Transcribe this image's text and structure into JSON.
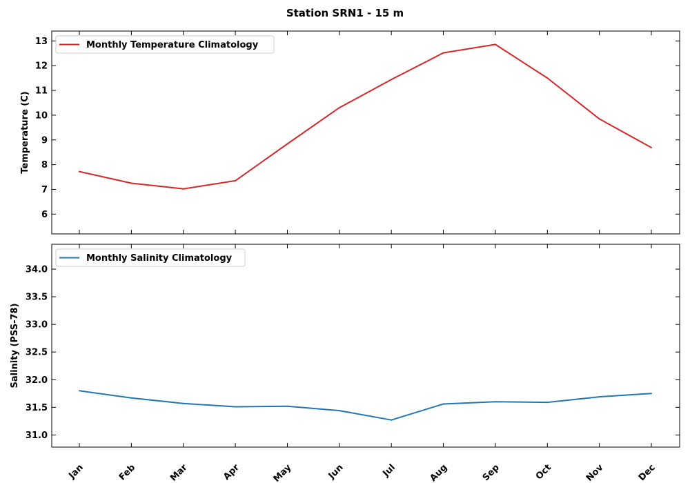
{
  "figure": {
    "title": "Station SRN1 - 15 m"
  },
  "chart_data": [
    {
      "type": "line",
      "title": "",
      "categories": [
        "Jan",
        "Feb",
        "Mar",
        "Apr",
        "May",
        "Jun",
        "Jul",
        "Aug",
        "Sep",
        "Oct",
        "Nov",
        "Dec"
      ],
      "series": [
        {
          "name": "Monthly Temperature Climatology",
          "color": "#d62728",
          "values": [
            7.72,
            7.25,
            7.02,
            7.35,
            8.84,
            10.3,
            11.44,
            12.52,
            12.86,
            11.5,
            9.85,
            8.69
          ]
        }
      ],
      "xlabel": "",
      "ylabel": "Temperature (C)",
      "ylim": [
        5.2,
        13.4
      ],
      "yticks": [
        6,
        7,
        8,
        9,
        10,
        11,
        12,
        13
      ],
      "ytick_labels": [
        "6",
        "7",
        "8",
        "9",
        "10",
        "11",
        "12",
        "13"
      ],
      "legend": "upper left",
      "grid": false
    },
    {
      "type": "line",
      "title": "",
      "categories": [
        "Jan",
        "Feb",
        "Mar",
        "Apr",
        "May",
        "Jun",
        "Jul",
        "Aug",
        "Sep",
        "Oct",
        "Nov",
        "Dec"
      ],
      "series": [
        {
          "name": "Monthly Salinity Climatology",
          "color": "#1f77b4",
          "values": [
            31.8,
            31.67,
            31.57,
            31.51,
            31.52,
            31.44,
            31.27,
            31.56,
            31.6,
            31.59,
            31.69,
            31.75
          ]
        }
      ],
      "xlabel": "",
      "ylabel": "Salinity (PSS-78)",
      "ylim": [
        30.78,
        34.45
      ],
      "yticks": [
        31.0,
        31.5,
        32.0,
        32.5,
        33.0,
        33.5,
        34.0
      ],
      "ytick_labels": [
        "31.0",
        "31.5",
        "32.0",
        "32.5",
        "33.0",
        "33.5",
        "34.0"
      ],
      "legend": "upper left",
      "grid": false
    }
  ]
}
